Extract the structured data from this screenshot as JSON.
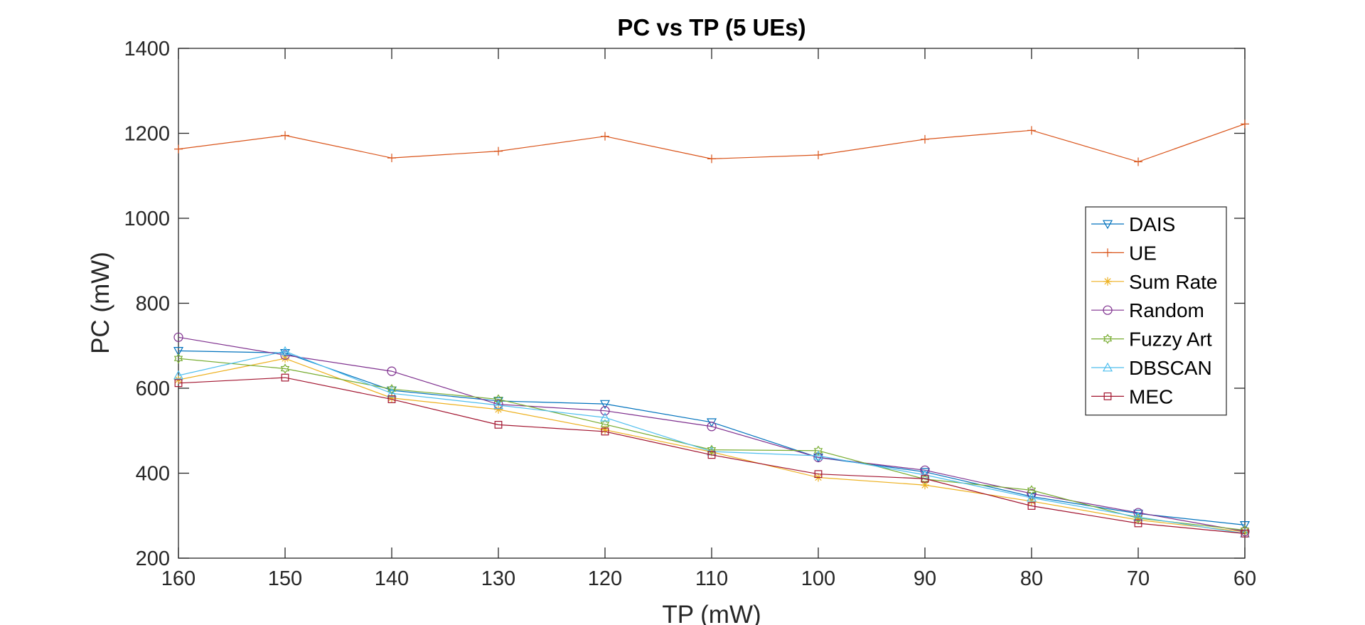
{
  "chart_data": {
    "type": "line",
    "title": "PC vs TP (5 UEs)",
    "xlabel": "TP (mW)",
    "ylabel": "PC (mW)",
    "x": [
      160,
      150,
      140,
      130,
      120,
      110,
      100,
      90,
      80,
      70,
      60
    ],
    "xlim": [
      160,
      60
    ],
    "ylim": [
      200,
      1400
    ],
    "xticks": [
      "160",
      "150",
      "140",
      "130",
      "120",
      "110",
      "100",
      "90",
      "80",
      "70",
      "60"
    ],
    "yticks": [
      "200",
      "400",
      "600",
      "800",
      "1000",
      "1200",
      "1400"
    ],
    "grid": false,
    "legend_position": "right",
    "series": [
      {
        "name": "DAIS",
        "color": "#0072BD",
        "marker": "triangle-down",
        "values": [
          688,
          683,
          595,
          570,
          563,
          520,
          437,
          403,
          345,
          305,
          278
        ]
      },
      {
        "name": "UE",
        "color": "#D95319",
        "marker": "plus",
        "values": [
          1163,
          1195,
          1142,
          1158,
          1193,
          1140,
          1149,
          1186,
          1207,
          1133,
          1222
        ]
      },
      {
        "name": "Sum Rate",
        "color": "#EDB120",
        "marker": "asterisk",
        "values": [
          620,
          670,
          577,
          550,
          502,
          450,
          390,
          372,
          334,
          290,
          262
        ]
      },
      {
        "name": "Random",
        "color": "#7E2F8E",
        "marker": "circle",
        "values": [
          720,
          678,
          640,
          562,
          547,
          510,
          437,
          407,
          352,
          307,
          263
        ]
      },
      {
        "name": "Fuzzy Art",
        "color": "#77AC30",
        "marker": "hexagram",
        "values": [
          670,
          646,
          598,
          574,
          515,
          455,
          453,
          386,
          360,
          294,
          266
        ]
      },
      {
        "name": "DBSCAN",
        "color": "#4DBEEE",
        "marker": "triangle-up",
        "values": [
          630,
          687,
          588,
          560,
          531,
          451,
          441,
          396,
          342,
          297,
          258
        ]
      },
      {
        "name": "MEC",
        "color": "#A2142F",
        "marker": "square",
        "values": [
          612,
          625,
          574,
          514,
          498,
          443,
          398,
          387,
          323,
          282,
          258
        ]
      }
    ]
  }
}
